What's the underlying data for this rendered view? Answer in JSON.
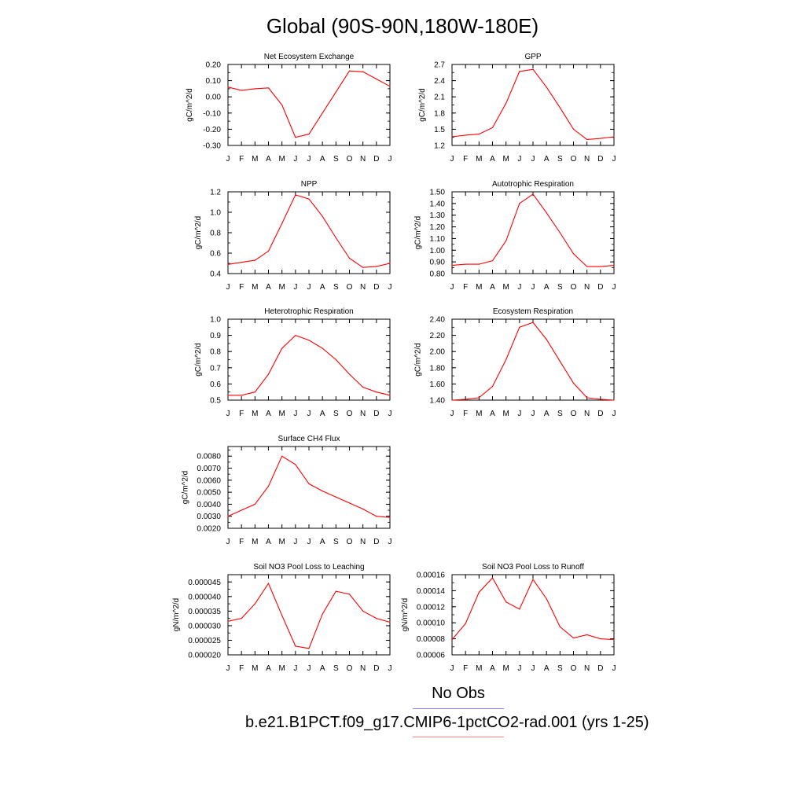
{
  "figure": {
    "title": "Global (90S-90N,180W-180E)",
    "line_color": "#ff0000",
    "obs_line_color": "#7f7fff",
    "legend": [
      {
        "label": "No Obs",
        "color": "#7f7fff"
      },
      {
        "label": "b.e21.B1PCT.f09_g17.CMIP6-1pctCO2-rad.001 (yrs 1-25)",
        "color": "#ff7f7f"
      }
    ]
  },
  "chart_data": [
    {
      "type": "line",
      "title": "Net Ecosystem Exchange",
      "ylabel": "gC/m^2/d",
      "categories": [
        "J",
        "F",
        "M",
        "A",
        "M",
        "J",
        "J",
        "A",
        "S",
        "O",
        "N",
        "D",
        "J"
      ],
      "yticks": [
        "-0.30",
        "-0.20",
        "-0.10",
        "0.00",
        "0.10",
        "0.20"
      ],
      "ylim": [
        -0.3,
        0.2
      ],
      "values": [
        0.06,
        0.04,
        0.05,
        0.055,
        -0.05,
        -0.25,
        -0.23,
        -0.1,
        0.03,
        0.16,
        0.155,
        0.11,
        0.065
      ]
    },
    {
      "type": "line",
      "title": "GPP",
      "ylabel": "gC/m^2/d",
      "categories": [
        "J",
        "F",
        "M",
        "A",
        "M",
        "J",
        "J",
        "A",
        "S",
        "O",
        "N",
        "D",
        "J"
      ],
      "yticks": [
        "1.2",
        "1.5",
        "1.8",
        "2.1",
        "2.4",
        "2.7"
      ],
      "ylim": [
        1.2,
        2.7
      ],
      "values": [
        1.36,
        1.39,
        1.41,
        1.53,
        1.98,
        2.57,
        2.61,
        2.28,
        1.9,
        1.5,
        1.31,
        1.33,
        1.36
      ]
    },
    {
      "type": "line",
      "title": "NPP",
      "ylabel": "gC/m^2/d",
      "categories": [
        "J",
        "F",
        "M",
        "A",
        "M",
        "J",
        "J",
        "A",
        "S",
        "O",
        "N",
        "D",
        "J"
      ],
      "yticks": [
        "0.4",
        "0.6",
        "0.8",
        "1.0",
        "1.2"
      ],
      "ylim": [
        0.4,
        1.2
      ],
      "values": [
        0.49,
        0.51,
        0.53,
        0.62,
        0.89,
        1.17,
        1.13,
        0.96,
        0.75,
        0.55,
        0.46,
        0.47,
        0.5
      ]
    },
    {
      "type": "line",
      "title": "Autotrophic Respiration",
      "ylabel": "gC/m^2/d",
      "categories": [
        "J",
        "F",
        "M",
        "A",
        "M",
        "J",
        "J",
        "A",
        "S",
        "O",
        "N",
        "D",
        "J"
      ],
      "yticks": [
        "0.80",
        "0.90",
        "1.00",
        "1.10",
        "1.20",
        "1.30",
        "1.40",
        "1.50"
      ],
      "ylim": [
        0.8,
        1.5
      ],
      "values": [
        0.87,
        0.88,
        0.88,
        0.91,
        1.08,
        1.4,
        1.48,
        1.32,
        1.15,
        0.97,
        0.86,
        0.86,
        0.87
      ]
    },
    {
      "type": "line",
      "title": "Heterotrophic Respiration",
      "ylabel": "gC/m^2/d",
      "categories": [
        "J",
        "F",
        "M",
        "A",
        "M",
        "J",
        "J",
        "A",
        "S",
        "O",
        "N",
        "D",
        "J"
      ],
      "yticks": [
        "0.5",
        "0.6",
        "0.7",
        "0.8",
        "0.9",
        "1.0"
      ],
      "ylim": [
        0.5,
        1.0
      ],
      "values": [
        0.53,
        0.53,
        0.55,
        0.66,
        0.82,
        0.9,
        0.87,
        0.82,
        0.75,
        0.66,
        0.58,
        0.55,
        0.53
      ]
    },
    {
      "type": "line",
      "title": "Ecosystem Respiration",
      "ylabel": "gC/m^2/d",
      "categories": [
        "J",
        "F",
        "M",
        "A",
        "M",
        "J",
        "J",
        "A",
        "S",
        "O",
        "N",
        "D",
        "J"
      ],
      "yticks": [
        "1.40",
        "1.60",
        "1.80",
        "2.00",
        "2.20",
        "2.40"
      ],
      "ylim": [
        1.4,
        2.4
      ],
      "values": [
        1.4,
        1.41,
        1.43,
        1.57,
        1.9,
        2.3,
        2.36,
        2.15,
        1.88,
        1.61,
        1.43,
        1.41,
        1.4
      ]
    },
    {
      "type": "line",
      "title": "Surface CH4 Flux",
      "ylabel": "gC/m^2/d",
      "categories": [
        "J",
        "F",
        "M",
        "A",
        "M",
        "J",
        "J",
        "A",
        "S",
        "O",
        "N",
        "D",
        "J"
      ],
      "yticks": [
        "0.0020",
        "0.0030",
        "0.0040",
        "0.0050",
        "0.0060",
        "0.0070",
        "0.0080"
      ],
      "ylim": [
        0.002,
        0.0088
      ],
      "values": [
        0.003,
        0.0035,
        0.004,
        0.0055,
        0.008,
        0.0073,
        0.0057,
        0.0051,
        0.0046,
        0.0041,
        0.0036,
        0.003,
        0.0029
      ]
    },
    {
      "type": "line",
      "title": "Soil NO3 Pool Loss to Leaching",
      "ylabel": "gN/m^2/d",
      "categories": [
        "J",
        "F",
        "M",
        "A",
        "M",
        "J",
        "J",
        "A",
        "S",
        "O",
        "N",
        "D",
        "J"
      ],
      "yticks": [
        "0.000020",
        "0.000025",
        "0.000030",
        "0.000035",
        "0.000040",
        "0.000045"
      ],
      "ylim": [
        2e-05,
        4.75e-05
      ],
      "values": [
        3.15e-05,
        3.25e-05,
        3.75e-05,
        4.45e-05,
        3.35e-05,
        2.3e-05,
        2.22e-05,
        3.4e-05,
        4.18e-05,
        4.08e-05,
        3.5e-05,
        3.25e-05,
        3.12e-05
      ]
    },
    {
      "type": "line",
      "title": "Soil NO3 Pool Loss to Runoff",
      "ylabel": "gN/m^2/d",
      "categories": [
        "J",
        "F",
        "M",
        "A",
        "M",
        "J",
        "J",
        "A",
        "S",
        "O",
        "N",
        "D",
        "J"
      ],
      "yticks": [
        "0.00006",
        "0.00008",
        "0.00010",
        "0.00012",
        "0.00014",
        "0.00016"
      ],
      "ylim": [
        6e-05,
        0.00016
      ],
      "values": [
        7.9e-05,
        9.9e-05,
        0.000138,
        0.000156,
        0.000126,
        0.000117,
        0.000154,
        0.00013,
        9.5e-05,
        8.1e-05,
        8.5e-05,
        8e-05,
        7.9e-05
      ]
    }
  ]
}
